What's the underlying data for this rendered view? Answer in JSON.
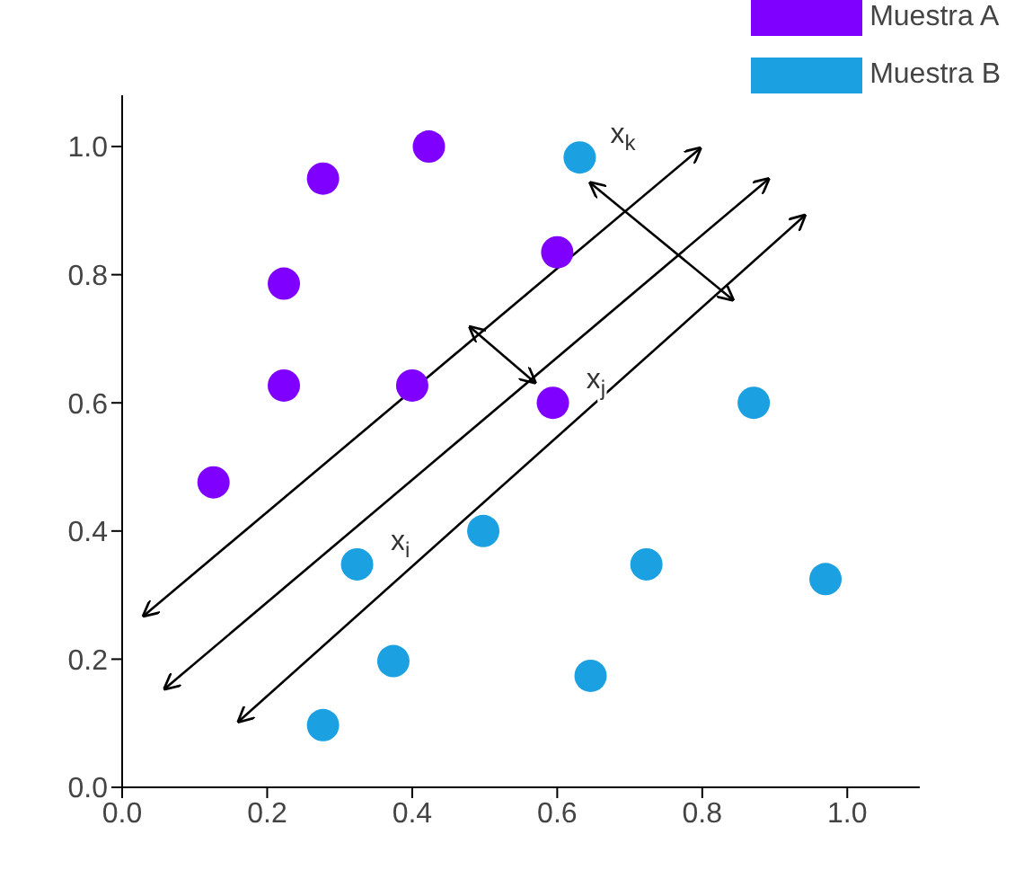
{
  "chart_data": {
    "type": "scatter",
    "xlim": [
      0,
      1.1
    ],
    "ylim": [
      0,
      1.08
    ],
    "xticks": [
      {
        "value": 0,
        "label": "0.0"
      },
      {
        "value": 0.2,
        "label": "0.2"
      },
      {
        "value": 0.4,
        "label": "0.4"
      },
      {
        "value": 0.6,
        "label": "0.6"
      },
      {
        "value": 0.8,
        "label": "0.8"
      },
      {
        "value": 1,
        "label": "1.0"
      }
    ],
    "yticks": [
      {
        "value": 0,
        "label": "0.0"
      },
      {
        "value": 0.2,
        "label": "0.2"
      },
      {
        "value": 0.4,
        "label": "0.4"
      },
      {
        "value": 0.6,
        "label": "0.6"
      },
      {
        "value": 0.8,
        "label": "0.8"
      },
      {
        "value": 1,
        "label": "1.0"
      }
    ],
    "grid": false,
    "legend": "top right",
    "marker": "circle",
    "series": [
      {
        "name": "Muestra A",
        "color": "#7f00ff",
        "x": [
          0.126,
          0.277,
          0.423,
          0.223,
          0.223,
          0.4,
          0.6,
          0.594
        ],
        "values": [
          0.476,
          0.95,
          1.0,
          0.786,
          0.627,
          0.627,
          0.835,
          0.6
        ]
      },
      {
        "name": "Muestra B",
        "color": "#1ba1e2",
        "x": [
          0.631,
          0.871,
          0.97,
          0.723,
          0.646,
          0.498,
          0.324,
          0.374,
          0.277
        ],
        "values": [
          0.983,
          0.6,
          0.325,
          0.348,
          0.174,
          0.4,
          0.348,
          0.197,
          0.097
        ]
      },
      {
        "type": "line",
        "color": "#000000",
        "marker": "none",
        "x": [
          0.03,
          0.797
        ],
        "values": [
          0.268,
          0.997
        ]
      },
      {
        "type": "line",
        "color": "#000000",
        "marker": "none",
        "x": [
          0.059,
          0.891
        ],
        "values": [
          0.154,
          0.949
        ]
      },
      {
        "type": "line",
        "color": "#000000",
        "marker": "none",
        "x": [
          0.161,
          0.941
        ],
        "values": [
          0.103,
          0.892
        ]
      },
      {
        "type": "line",
        "color": "#000000",
        "marker": "none",
        "x": [
          0.48,
          0.569
        ],
        "values": [
          0.718,
          0.632
        ]
      },
      {
        "type": "line",
        "color": "#000000",
        "marker": "none",
        "x": [
          0.646,
          0.842
        ],
        "values": [
          0.943,
          0.761
        ]
      }
    ],
    "annotations": [
      {
        "text": "x$_{k}$",
        "x": 0.631,
        "y": 0.983
      },
      {
        "text": "x$_{j}$",
        "x": 0.594,
        "y": 0.6
      },
      {
        "text": "x$_{i}$",
        "x": 0.324,
        "y": 0.348
      }
    ]
  }
}
